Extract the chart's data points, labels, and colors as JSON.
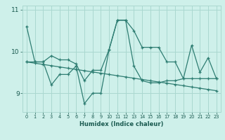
{
  "xlabel": "Humidex (Indice chaleur)",
  "x": [
    0,
    1,
    2,
    3,
    4,
    5,
    6,
    7,
    8,
    9,
    10,
    11,
    12,
    13,
    14,
    15,
    16,
    17,
    18,
    19,
    20,
    21,
    22,
    23
  ],
  "line1": [
    10.6,
    9.75,
    9.75,
    9.9,
    9.8,
    9.8,
    9.7,
    9.3,
    9.55,
    9.55,
    10.05,
    10.75,
    10.75,
    10.5,
    10.1,
    10.1,
    10.1,
    9.75,
    9.75,
    9.35,
    10.15,
    9.5,
    9.85,
    9.35
  ],
  "line2": [
    9.75,
    9.72,
    9.69,
    9.66,
    9.63,
    9.6,
    9.57,
    9.54,
    9.51,
    9.48,
    9.45,
    9.42,
    9.39,
    9.36,
    9.33,
    9.3,
    9.27,
    9.24,
    9.21,
    9.18,
    9.15,
    9.12,
    9.09,
    9.06
  ],
  "line3": [
    9.75,
    9.75,
    9.75,
    9.2,
    9.45,
    9.45,
    9.65,
    8.75,
    9.0,
    9.0,
    10.05,
    10.75,
    10.75,
    9.65,
    9.3,
    9.25,
    9.25,
    9.3,
    9.3,
    9.35,
    9.35,
    9.35,
    9.35,
    9.35
  ],
  "line_color": "#2e7d72",
  "bg_color": "#cef0ea",
  "grid_color": "#aad8d0",
  "ylim": [
    8.55,
    11.1
  ],
  "yticks": [
    9,
    10,
    11
  ],
  "ytick_labels": [
    "9",
    "10",
    "11"
  ]
}
